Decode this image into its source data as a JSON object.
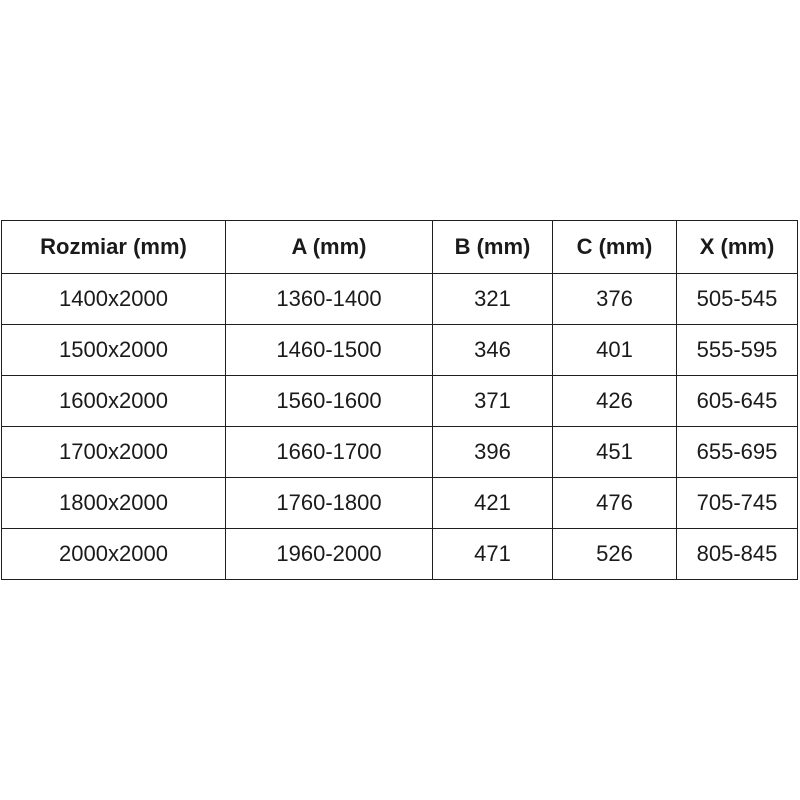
{
  "table": {
    "headers": [
      "Rozmiar (mm)",
      "A (mm)",
      "B (mm)",
      "C (mm)",
      "X (mm)"
    ],
    "rows": [
      [
        "1400x2000",
        "1360-1400",
        "321",
        "376",
        "505-545"
      ],
      [
        "1500x2000",
        "1460-1500",
        "346",
        "401",
        "555-595"
      ],
      [
        "1600x2000",
        "1560-1600",
        "371",
        "426",
        "605-645"
      ],
      [
        "1700x2000",
        "1660-1700",
        "396",
        "451",
        "655-695"
      ],
      [
        "1800x2000",
        "1760-1800",
        "421",
        "476",
        "705-745"
      ],
      [
        "2000x2000",
        "1960-2000",
        "471",
        "526",
        "805-845"
      ]
    ]
  },
  "colors": {
    "background": "#ffffff",
    "border": "#1f1f1f",
    "text": "#1a1a1a"
  }
}
